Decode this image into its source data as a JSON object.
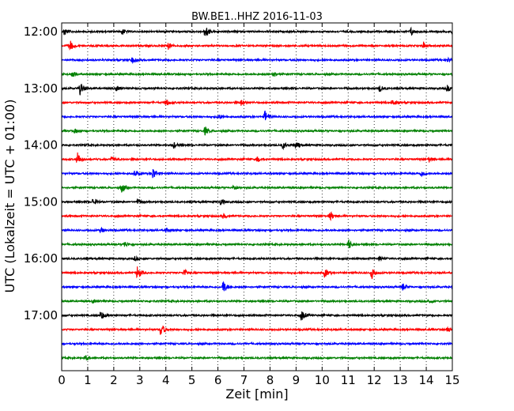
{
  "chart_data": {
    "type": "line",
    "subtype": "helicorder",
    "title": "BW.BE1..HHZ 2016-11-03",
    "xlabel": "Zeit  [min]",
    "ylabel": "UTC (Lokalzeit = UTC + 01:00)",
    "xlim": [
      0,
      15
    ],
    "x_ticks": [
      "0",
      "1",
      "2",
      "3",
      "4",
      "5",
      "6",
      "7",
      "8",
      "9",
      "10",
      "11",
      "12",
      "13",
      "14",
      "15"
    ],
    "y_ticks": [
      "12:00",
      "13:00",
      "14:00",
      "15:00",
      "16:00",
      "17:00"
    ],
    "grid": "vertical dotted",
    "line_interval_min": 15,
    "start_time": "12:00",
    "color_cycle": [
      "#000000",
      "#ff0000",
      "#0000ff",
      "#008000"
    ],
    "traces": [
      {
        "label": "12:00",
        "events": [
          [
            0.1,
            0.6
          ],
          [
            2.3,
            0.5
          ],
          [
            5.5,
            1.0
          ],
          [
            13.4,
            0.6
          ],
          [
            15.0,
            0.4
          ]
        ]
      },
      {
        "label": "12:15",
        "events": [
          [
            0.3,
            0.9
          ],
          [
            4.1,
            0.5
          ],
          [
            13.9,
            0.5
          ]
        ]
      },
      {
        "label": "12:30",
        "events": [
          [
            2.7,
            0.4
          ],
          [
            14.8,
            0.3
          ]
        ]
      },
      {
        "label": "12:45",
        "events": [
          [
            0.4,
            0.5
          ],
          [
            8.1,
            0.4
          ]
        ]
      },
      {
        "label": "13:00",
        "events": [
          [
            0.7,
            1.0
          ],
          [
            2.1,
            0.4
          ],
          [
            12.2,
            0.5
          ],
          [
            14.8,
            0.4
          ]
        ]
      },
      {
        "label": "13:15",
        "events": [
          [
            4.0,
            0.5
          ],
          [
            6.9,
            0.5
          ],
          [
            12.7,
            0.5
          ]
        ]
      },
      {
        "label": "13:30",
        "events": [
          [
            7.8,
            0.9
          ],
          [
            6.0,
            0.4
          ]
        ]
      },
      {
        "label": "13:45",
        "events": [
          [
            5.5,
            0.6
          ],
          [
            0.5,
            0.3
          ]
        ]
      },
      {
        "label": "14:00",
        "events": [
          [
            4.3,
            0.4
          ],
          [
            8.5,
            0.5
          ],
          [
            9.0,
            0.5
          ]
        ]
      },
      {
        "label": "14:15",
        "events": [
          [
            0.6,
            1.0
          ],
          [
            1.9,
            0.4
          ],
          [
            7.5,
            0.4
          ],
          [
            14.1,
            0.4
          ]
        ]
      },
      {
        "label": "14:30",
        "events": [
          [
            3.5,
            0.9
          ],
          [
            2.8,
            0.4
          ],
          [
            13.8,
            0.4
          ]
        ]
      },
      {
        "label": "14:45",
        "events": [
          [
            2.3,
            0.7
          ],
          [
            6.6,
            0.4
          ]
        ]
      },
      {
        "label": "15:00",
        "events": [
          [
            1.2,
            0.5
          ],
          [
            2.9,
            0.4
          ],
          [
            6.1,
            0.5
          ]
        ]
      },
      {
        "label": "15:15",
        "events": [
          [
            10.3,
            0.7
          ],
          [
            6.2,
            0.3
          ]
        ]
      },
      {
        "label": "15:30",
        "events": [
          [
            1.5,
            0.4
          ],
          [
            4.0,
            0.3
          ]
        ]
      },
      {
        "label": "15:45",
        "events": [
          [
            11.0,
            0.8
          ],
          [
            2.4,
            0.4
          ]
        ]
      },
      {
        "label": "16:00",
        "events": [
          [
            12.2,
            0.4
          ],
          [
            2.8,
            0.3
          ]
        ]
      },
      {
        "label": "16:15",
        "events": [
          [
            2.9,
            1.0
          ],
          [
            4.7,
            0.5
          ],
          [
            10.1,
            0.7
          ],
          [
            11.9,
            0.9
          ]
        ]
      },
      {
        "label": "16:30",
        "events": [
          [
            6.2,
            1.0
          ],
          [
            13.1,
            0.5
          ]
        ]
      },
      {
        "label": "16:45",
        "events": [
          [
            1.2,
            0.3
          ],
          [
            14.1,
            0.3
          ]
        ]
      },
      {
        "label": "17:00",
        "events": [
          [
            1.5,
            0.7
          ],
          [
            9.2,
            0.8
          ]
        ]
      },
      {
        "label": "17:15",
        "events": [
          [
            3.8,
            1.0
          ],
          [
            14.8,
            0.4
          ]
        ]
      },
      {
        "label": "17:30",
        "events": []
      },
      {
        "label": "17:45",
        "events": [
          [
            0.9,
            0.4
          ]
        ]
      }
    ]
  }
}
